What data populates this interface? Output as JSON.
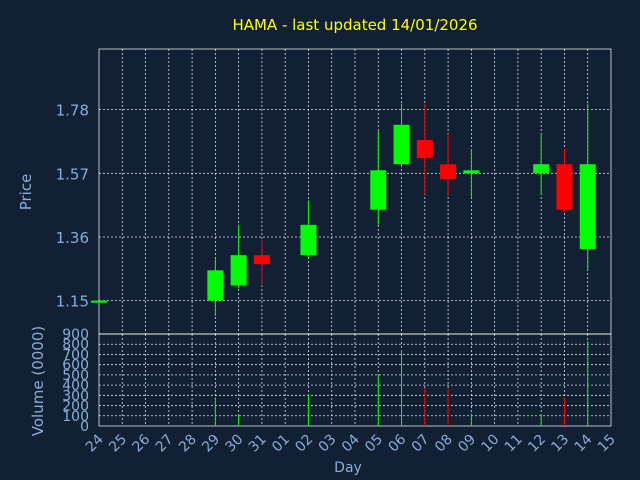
{
  "chart_data": [
    {
      "type": "candlestick",
      "title": "HAMA - last updated 14/01/2026",
      "ylabel": "Price",
      "xlabel": "",
      "ylim": [
        1.04,
        1.98
      ],
      "yticks": [
        "1.15",
        "1.36",
        "1.57",
        "1.78"
      ],
      "grid": true,
      "colors": {
        "up": "#00ff00",
        "down": "#ff0000",
        "title": "#ffff00",
        "axis_text": "#8aaed8",
        "background": "#112033"
      },
      "candles": [
        {
          "day": "24",
          "open": 1.15,
          "high": 1.15,
          "low": 1.15,
          "close": 1.15
        },
        {
          "day": "29",
          "open": 1.15,
          "high": 1.29,
          "low": 1.1,
          "close": 1.25
        },
        {
          "day": "30",
          "open": 1.2,
          "high": 1.4,
          "low": 1.19,
          "close": 1.3
        },
        {
          "day": "31",
          "open": 1.3,
          "high": 1.35,
          "low": 1.2,
          "close": 1.27
        },
        {
          "day": "02",
          "open": 1.3,
          "high": 1.48,
          "low": 1.29,
          "close": 1.4
        },
        {
          "day": "05",
          "open": 1.45,
          "high": 1.71,
          "low": 1.4,
          "close": 1.58
        },
        {
          "day": "06",
          "open": 1.6,
          "high": 1.8,
          "low": 1.59,
          "close": 1.73
        },
        {
          "day": "07",
          "open": 1.68,
          "high": 1.8,
          "low": 1.5,
          "close": 1.62
        },
        {
          "day": "08",
          "open": 1.6,
          "high": 1.7,
          "low": 1.5,
          "close": 1.55
        },
        {
          "day": "09",
          "open": 1.57,
          "high": 1.65,
          "low": 1.49,
          "close": 1.58
        },
        {
          "day": "12",
          "open": 1.57,
          "high": 1.7,
          "low": 1.5,
          "close": 1.6
        },
        {
          "day": "13",
          "open": 1.6,
          "high": 1.65,
          "low": 1.44,
          "close": 1.45
        },
        {
          "day": "14",
          "open": 1.32,
          "high": 1.8,
          "low": 1.25,
          "close": 1.6
        }
      ]
    },
    {
      "type": "bar",
      "ylabel": "Volume (0000)",
      "xlabel": "Day",
      "ylim": [
        0,
        900
      ],
      "yticks": [
        "0",
        "100",
        "200",
        "300",
        "400",
        "500",
        "600",
        "700",
        "800",
        "900"
      ],
      "categories": [
        "24",
        "25",
        "26",
        "27",
        "28",
        "29",
        "30",
        "31",
        "01",
        "02",
        "03",
        "04",
        "05",
        "06",
        "07",
        "08",
        "09",
        "10",
        "11",
        "12",
        "13",
        "14",
        "15"
      ],
      "values": [
        0,
        0,
        0,
        0,
        0,
        280,
        110,
        0,
        0,
        310,
        0,
        0,
        490,
        740,
        370,
        360,
        120,
        0,
        0,
        110,
        270,
        830,
        0
      ]
    }
  ]
}
